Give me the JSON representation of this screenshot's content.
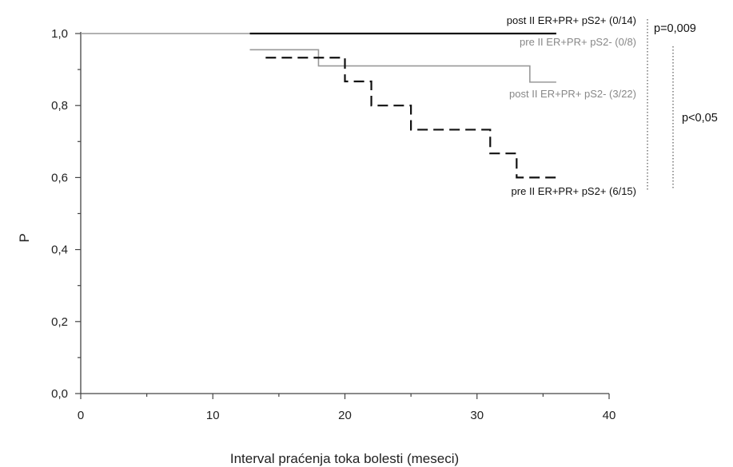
{
  "chart_data": {
    "type": "line",
    "title": "",
    "xlabel": "Interval praćenja toka bolesti (meseci)",
    "ylabel": "P",
    "xlim": [
      0,
      40
    ],
    "ylim": [
      0,
      1
    ],
    "x_ticks": [
      "0",
      "10",
      "20",
      "30",
      "40"
    ],
    "y_ticks": [
      "0,0",
      "0,2",
      "0,4",
      "0,6",
      "0,8",
      "1,0"
    ],
    "grid": false,
    "series": [
      {
        "name": "post II ER+PR+ pS2+ (0/14)",
        "style": "solid",
        "color": "#111111",
        "steps": [
          [
            12.8,
            1.0
          ],
          [
            36.0,
            1.0
          ]
        ]
      },
      {
        "name": "pre II ER+PR+ pS2- (0/8)",
        "style": "solid",
        "color": "#999999",
        "steps": [
          [
            0,
            1.0
          ],
          [
            36.0,
            1.0
          ]
        ]
      },
      {
        "name": "post II ER+PR+ pS2- (3/22)",
        "style": "solid",
        "color": "#999999",
        "steps": [
          [
            12.8,
            0.955
          ],
          [
            18.0,
            0.91
          ],
          [
            34.0,
            0.865
          ],
          [
            36.0,
            0.865
          ]
        ]
      },
      {
        "name": "pre II ER+PR+ pS2+ (6/15)",
        "style": "dashed",
        "color": "#111111",
        "steps": [
          [
            14.0,
            0.933
          ],
          [
            20.0,
            0.867
          ],
          [
            22.0,
            0.8
          ],
          [
            25.0,
            0.733
          ],
          [
            31.0,
            0.667
          ],
          [
            33.0,
            0.6
          ],
          [
            36.0,
            0.6
          ]
        ]
      }
    ],
    "series_labels": [
      {
        "text": "post II ER+PR+ pS2+ (0/14)",
        "color": "#111111"
      },
      {
        "text": "pre II ER+PR+ pS2- (0/8)",
        "color": "#888888"
      },
      {
        "text": "post II ER+PR+ pS2- (3/22)",
        "color": "#888888"
      },
      {
        "text": "pre II ER+PR+ pS2+ (6/15)",
        "color": "#111111"
      }
    ],
    "annotations": [
      "p=0,009",
      "p<0,05"
    ]
  }
}
